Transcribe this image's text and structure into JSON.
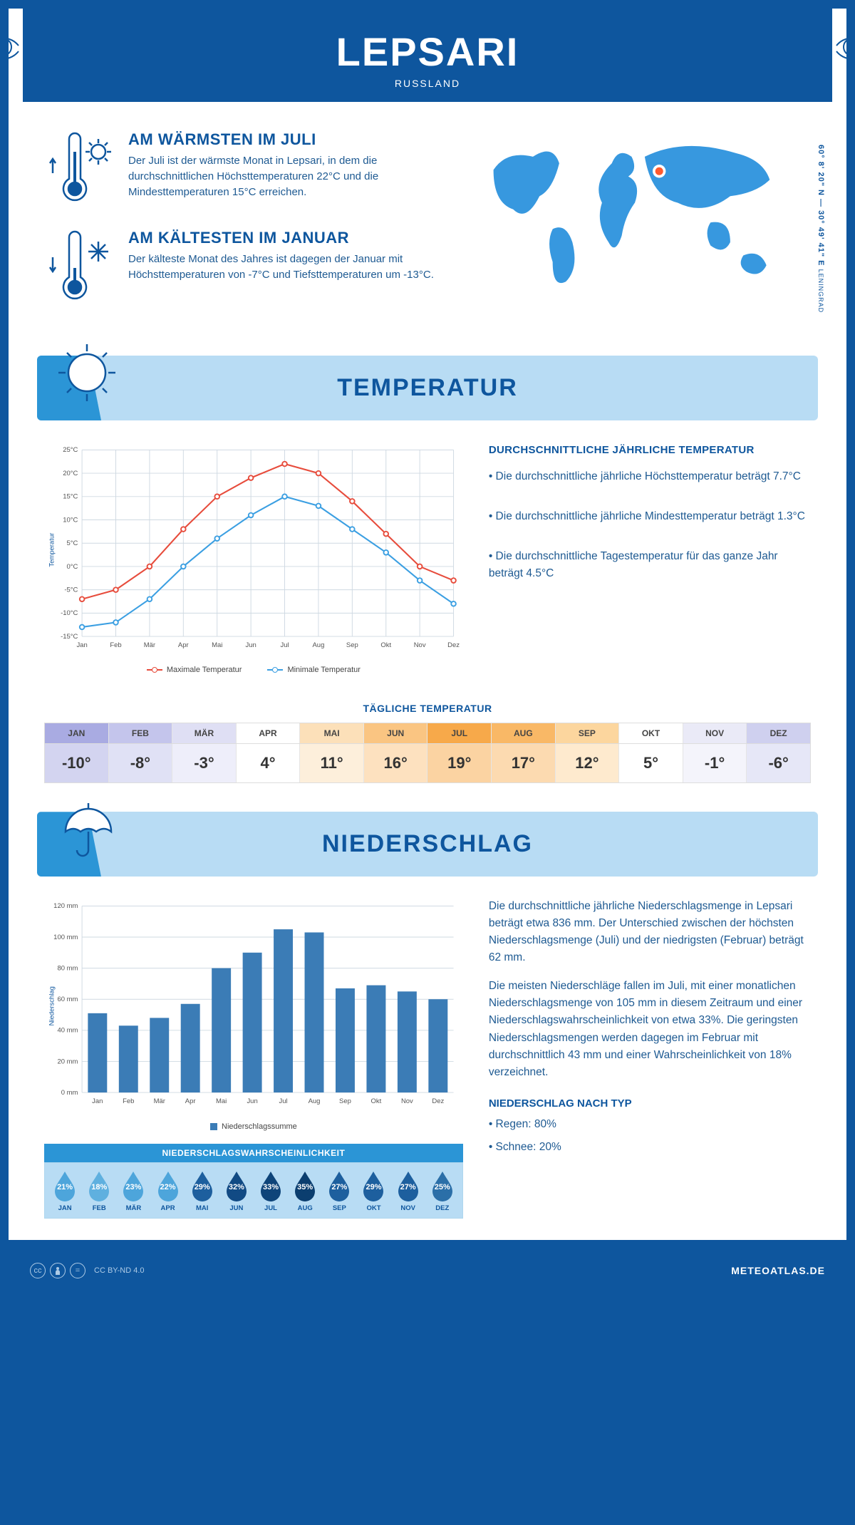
{
  "header": {
    "title": "LEPSARI",
    "country": "RUSSLAND"
  },
  "coords": {
    "lat": "60° 8' 20\" N",
    "lon": "30° 49' 41\" E",
    "region": "LENINGRAD"
  },
  "intro": {
    "warm": {
      "title": "AM WÄRMSTEN IM JULI",
      "body": "Der Juli ist der wärmste Monat in Lepsari, in dem die durchschnittlichen Höchsttemperaturen 22°C und die Mindesttemperaturen 15°C erreichen."
    },
    "cold": {
      "title": "AM KÄLTESTEN IM JANUAR",
      "body": "Der kälteste Monat des Jahres ist dagegen der Januar mit Höchsttemperaturen von -7°C und Tiefsttemperaturen um -13°C."
    }
  },
  "temperature": {
    "banner": "TEMPERATUR",
    "text_title": "DURCHSCHNITTLICHE JÄHRLICHE TEMPERATUR",
    "bullets": [
      "• Die durchschnittliche jährliche Höchsttemperatur beträgt 7.7°C",
      "• Die durchschnittliche jährliche Mindesttemperatur beträgt 1.3°C",
      "• Die durchschnittliche Tagestemperatur für das ganze Jahr beträgt 4.5°C"
    ],
    "chart": {
      "type": "line",
      "months": [
        "Jan",
        "Feb",
        "Mär",
        "Apr",
        "Mai",
        "Jun",
        "Jul",
        "Aug",
        "Sep",
        "Okt",
        "Nov",
        "Dez"
      ],
      "max": [
        -7,
        -5,
        0,
        8,
        15,
        19,
        22,
        20,
        14,
        7,
        0,
        -3
      ],
      "min": [
        -13,
        -12,
        -7,
        0,
        6,
        11,
        15,
        13,
        8,
        3,
        -3,
        -8
      ],
      "y_min": -15,
      "y_max": 25,
      "y_step": 5,
      "y_unit": "°C",
      "y_title": "Temperatur",
      "max_color": "#e74c3c",
      "min_color": "#3b9fe2",
      "grid_color": "#cfd9e2",
      "legend_max": "Maximale Temperatur",
      "legend_min": "Minimale Temperatur"
    },
    "daily": {
      "title": "TÄGLICHE TEMPERATUR",
      "months": [
        "JAN",
        "FEB",
        "MÄR",
        "APR",
        "MAI",
        "JUN",
        "JUL",
        "AUG",
        "SEP",
        "OKT",
        "NOV",
        "DEZ"
      ],
      "values": [
        "-10°",
        "-8°",
        "-3°",
        "4°",
        "11°",
        "16°",
        "19°",
        "17°",
        "12°",
        "5°",
        "-1°",
        "-6°"
      ],
      "head_colors": [
        "#a9abe2",
        "#c4c5ec",
        "#dfdff4",
        "#ffffff",
        "#fce0b9",
        "#fac582",
        "#f7a94a",
        "#f9b866",
        "#fcd69e",
        "#ffffff",
        "#eaeaf7",
        "#cfd0ef"
      ],
      "body_colors": [
        "#d3d4f0",
        "#e0e1f5",
        "#eeeefa",
        "#ffffff",
        "#fdefdb",
        "#fde1bf",
        "#fbd3a2",
        "#fcdab0",
        "#feeace",
        "#ffffff",
        "#f4f4fb",
        "#e6e7f7"
      ]
    }
  },
  "precipitation": {
    "banner": "NIEDERSCHLAG",
    "chart": {
      "type": "bar",
      "months": [
        "Jan",
        "Feb",
        "Mär",
        "Apr",
        "Mai",
        "Jun",
        "Jul",
        "Aug",
        "Sep",
        "Okt",
        "Nov",
        "Dez"
      ],
      "values": [
        51,
        43,
        48,
        57,
        80,
        90,
        105,
        103,
        67,
        69,
        65,
        60
      ],
      "y_min": 0,
      "y_max": 120,
      "y_step": 20,
      "y_unit": " mm",
      "y_title": "Niederschlag",
      "bar_color": "#3b7cb6",
      "grid_color": "#cfd9e2",
      "legend": "Niederschlagssumme"
    },
    "text": {
      "p1": "Die durchschnittliche jährliche Niederschlagsmenge in Lepsari beträgt etwa 836 mm. Der Unterschied zwischen der höchsten Niederschlagsmenge (Juli) und der niedrigsten (Februar) beträgt 62 mm.",
      "p2": "Die meisten Niederschläge fallen im Juli, mit einer monatlichen Niederschlagsmenge von 105 mm in diesem Zeitraum und einer Niederschlagswahrscheinlichkeit von etwa 33%. Die geringsten Niederschlagsmengen werden dagegen im Februar mit durchschnittlich 43 mm und einer Wahrscheinlichkeit von 18% verzeichnet.",
      "type_title": "NIEDERSCHLAG NACH TYP",
      "type_rain": "• Regen: 80%",
      "type_snow": "• Schnee: 20%"
    },
    "probability": {
      "title": "NIEDERSCHLAGSWAHRSCHEINLICHKEIT",
      "months": [
        "JAN",
        "FEB",
        "MÄR",
        "APR",
        "MAI",
        "JUN",
        "JUL",
        "AUG",
        "SEP",
        "OKT",
        "NOV",
        "DEZ"
      ],
      "values": [
        "21%",
        "18%",
        "23%",
        "22%",
        "29%",
        "32%",
        "33%",
        "35%",
        "27%",
        "29%",
        "27%",
        "25%"
      ],
      "drop_colors": [
        "#4da5db",
        "#5fb0df",
        "#4da5db",
        "#4da5db",
        "#1d5f9e",
        "#114a84",
        "#0e4479",
        "#0b3e6f",
        "#1d5f9e",
        "#1d5f9e",
        "#1d5f9e",
        "#2b6fa8"
      ]
    }
  },
  "footer": {
    "license": "CC BY-ND 4.0",
    "brand": "METEOATLAS.DE"
  },
  "colors": {
    "primary": "#0e569e",
    "lightblue": "#b8dcf4",
    "midblue": "#2b95d6",
    "map": "#3798df",
    "marker": "#ff5a2e"
  }
}
